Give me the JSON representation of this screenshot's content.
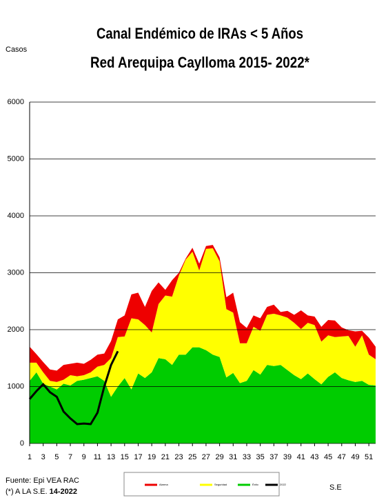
{
  "chart_data": {
    "type": "area",
    "stacked": true,
    "title": "Canal Endémico de IRAs < 5 Años",
    "subtitle": "Red Arequipa Caylloma 2015- 2022*",
    "y_label": "Casos",
    "x_label": "S.E",
    "source": "Fuente: Epi VEA RAC",
    "note": "(*) A LA S.E.",
    "note_week": "14-2022",
    "x": [
      1,
      2,
      3,
      4,
      5,
      6,
      7,
      8,
      9,
      10,
      11,
      12,
      13,
      14,
      15,
      16,
      17,
      18,
      19,
      20,
      21,
      22,
      23,
      24,
      25,
      26,
      27,
      28,
      29,
      30,
      31,
      32,
      33,
      34,
      35,
      36,
      37,
      38,
      39,
      40,
      41,
      42,
      43,
      44,
      45,
      46,
      47,
      48,
      49,
      50,
      51,
      52
    ],
    "xlim": [
      1,
      52
    ],
    "xticks": [
      1,
      3,
      5,
      7,
      9,
      11,
      13,
      15,
      17,
      19,
      21,
      23,
      25,
      27,
      29,
      31,
      33,
      35,
      37,
      39,
      41,
      43,
      45,
      47,
      49,
      51
    ],
    "ylim": [
      0,
      6000
    ],
    "yticks": [
      0,
      1000,
      2000,
      3000,
      4000,
      5000,
      6000
    ],
    "grid": true,
    "series": [
      {
        "name": "Éxito",
        "color": "#00cc00",
        "values": [
          1100,
          1250,
          1050,
          1000,
          950,
          1050,
          1020,
          1100,
          1120,
          1150,
          1180,
          1100,
          820,
          1000,
          1150,
          950,
          1230,
          1150,
          1250,
          1500,
          1480,
          1380,
          1560,
          1560,
          1690,
          1690,
          1640,
          1560,
          1520,
          1160,
          1240,
          1060,
          1100,
          1290,
          1210,
          1380,
          1360,
          1380,
          1290,
          1200,
          1130,
          1230,
          1130,
          1040,
          1170,
          1250,
          1150,
          1110,
          1080,
          1100,
          1030,
          1020
        ]
      },
      {
        "name": "Seguridad",
        "color": "#ffff00",
        "values": [
          320,
          170,
          200,
          100,
          130,
          70,
          180,
          80,
          80,
          100,
          170,
          280,
          680,
          870,
          730,
          1250,
          950,
          930,
          700,
          950,
          1120,
          1200,
          1390,
          1670,
          1680,
          1350,
          1780,
          1870,
          1680,
          1200,
          1060,
          700,
          660,
          760,
          770,
          880,
          920,
          870,
          920,
          920,
          880,
          890,
          950,
          750,
          730,
          620,
          730,
          780,
          620,
          800,
          530,
          460
        ]
      },
      {
        "name": "Alarma",
        "color": "#ee0000",
        "values": [
          280,
          150,
          180,
          200,
          200,
          260,
          200,
          240,
          200,
          220,
          210,
          200,
          300,
          310,
          370,
          420,
          470,
          320,
          730,
          380,
          100,
          290,
          50,
          20,
          70,
          120,
          50,
          60,
          70,
          210,
          350,
          370,
          270,
          200,
          220,
          140,
          160,
          60,
          120,
          140,
          330,
          130,
          150,
          260,
          270,
          290,
          160,
          100,
          270,
          80,
          300,
          220
        ]
      },
      {
        "name": "2022",
        "color": "#000000",
        "type": "line",
        "values": [
          780,
          920,
          1040,
          900,
          820,
          560,
          440,
          340,
          350,
          340,
          540,
          1000,
          1380,
          1620,
          null,
          null,
          null,
          null,
          null,
          null,
          null,
          null,
          null,
          null,
          null,
          null,
          null,
          null,
          null,
          null,
          null,
          null,
          null,
          null,
          null,
          null,
          null,
          null,
          null,
          null,
          null,
          null,
          null,
          null,
          null,
          null,
          null,
          null,
          null,
          null,
          null,
          null
        ]
      }
    ]
  }
}
